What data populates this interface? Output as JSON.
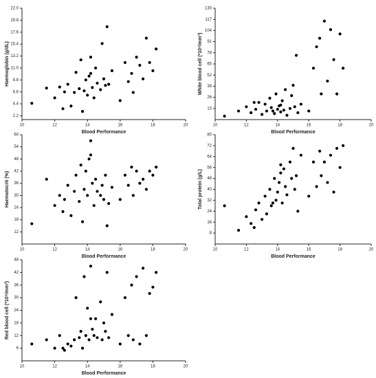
{
  "chart_data": [
    {
      "type": "scatter",
      "x_label": "Blood Performance",
      "y_label": "Haemoglobin (g/dL)",
      "xlim": [
        10,
        20
      ],
      "xticks": [
        10,
        12,
        14,
        16,
        18,
        20
      ],
      "ylim": [
        1.5,
        22
      ],
      "yticks": [
        2.2,
        4.4,
        6.6,
        8.8,
        {
          "value": 11,
          "label": "11.0"
        },
        13.2,
        15.4,
        17.6,
        19.8,
        {
          "value": 22,
          "label": "22.0"
        }
      ],
      "color": "#000000",
      "x": [
        10.6,
        11.5,
        12.0,
        12.3,
        12.6,
        12.8,
        13.0,
        13.2,
        13.3,
        13.5,
        13.6,
        13.8,
        13.9,
        14.0,
        14.1,
        14.2,
        14.3,
        14.4,
        14.5,
        14.6,
        14.8,
        14.9,
        15.0,
        15.1,
        15.2,
        15.5,
        16.0,
        16.3,
        16.5,
        16.7,
        16.8,
        17.0,
        17.2,
        17.4,
        17.6,
        17.8,
        18.0,
        18.2,
        12.5,
        13.7,
        14.2,
        15.3
      ],
      "y": [
        4.5,
        7.3,
        5.5,
        7.5,
        6.6,
        8.0,
        4.0,
        6.5,
        10.2,
        7.2,
        12.5,
        6.8,
        8.8,
        6.0,
        9.5,
        13.0,
        7.4,
        5.5,
        11.0,
        8.2,
        7.0,
        15.5,
        9.0,
        7.8,
        18.6,
        10.5,
        5.0,
        12.0,
        8.5,
        10.0,
        6.5,
        13.0,
        11.5,
        9.0,
        16.5,
        12.0,
        10.5,
        14.5,
        3.5,
        3.0,
        10.0,
        8.0
      ]
    },
    {
      "type": "scatter",
      "x_label": "Blood Performance",
      "y_label": "White blood cell (*10⁹/mm³)",
      "xlim": [
        10,
        20
      ],
      "xticks": [
        10,
        12,
        14,
        16,
        18,
        20
      ],
      "ylim": [
        0,
        130
      ],
      "yticks": [
        13,
        26,
        39,
        52,
        65,
        78,
        91,
        104,
        117,
        130
      ],
      "color": "#000000",
      "x": [
        10.6,
        11.5,
        12.0,
        12.3,
        12.6,
        12.8,
        13.0,
        13.2,
        13.3,
        13.5,
        13.6,
        13.8,
        13.9,
        14.0,
        14.1,
        14.2,
        14.3,
        14.4,
        14.5,
        14.6,
        14.8,
        14.9,
        15.0,
        15.1,
        15.2,
        15.5,
        16.0,
        16.3,
        16.5,
        16.7,
        16.8,
        17.0,
        17.2,
        17.4,
        17.6,
        17.8,
        18.0,
        18.2,
        12.5,
        13.7,
        14.2,
        15.3
      ],
      "y": [
        4,
        10,
        15,
        8,
        12,
        20,
        6,
        18,
        10,
        25,
        14,
        7,
        30,
        12,
        16,
        9,
        22,
        11,
        35,
        5,
        13,
        28,
        40,
        15,
        75,
        18,
        10,
        60,
        85,
        95,
        30,
        115,
        45,
        105,
        70,
        30,
        100,
        60,
        20,
        10,
        17,
        8
      ]
    },
    {
      "type": "scatter",
      "x_label": "Blood Performance",
      "y_label": "Haematocrit (%)",
      "xlim": [
        10,
        20
      ],
      "xticks": [
        10,
        12,
        14,
        16,
        18,
        20
      ],
      "ylim": [
        6,
        60
      ],
      "yticks": [
        12,
        18,
        24,
        30,
        36,
        42,
        48,
        54,
        60
      ],
      "color": "#000000",
      "x": [
        10.6,
        11.5,
        12.0,
        12.3,
        12.6,
        12.8,
        13.0,
        13.2,
        13.3,
        13.5,
        13.6,
        13.8,
        13.9,
        14.0,
        14.1,
        14.2,
        14.3,
        14.4,
        14.5,
        14.6,
        14.8,
        14.9,
        15.0,
        15.1,
        15.2,
        15.5,
        16.0,
        16.3,
        16.5,
        16.7,
        16.8,
        17.0,
        17.2,
        17.4,
        17.6,
        17.8,
        18.0,
        18.2,
        12.5,
        13.7,
        14.2,
        15.3
      ],
      "y": [
        16,
        38,
        25,
        30,
        28,
        35,
        20,
        32,
        40,
        27,
        45,
        33,
        42,
        30,
        48,
        57,
        36,
        25,
        38,
        32,
        30,
        35,
        28,
        40,
        15,
        34,
        28,
        40,
        35,
        44,
        30,
        42,
        36,
        38,
        33,
        42,
        40,
        44,
        22,
        17,
        50,
        26
      ]
    },
    {
      "type": "scatter",
      "x_label": "Blood Performance",
      "y_label": "Total protein (g/L)",
      "xlim": [
        10,
        20
      ],
      "xticks": [
        10,
        12,
        14,
        16,
        18,
        20
      ],
      "ylim": [
        0,
        80
      ],
      "yticks": [
        8,
        16,
        24,
        32,
        40,
        48,
        56,
        64,
        72,
        80
      ],
      "color": "#000000",
      "x": [
        10.6,
        11.5,
        12.0,
        12.3,
        12.6,
        12.8,
        13.0,
        13.2,
        13.3,
        13.5,
        13.6,
        13.8,
        13.9,
        14.0,
        14.1,
        14.2,
        14.3,
        14.4,
        14.5,
        14.6,
        14.8,
        14.9,
        15.0,
        15.1,
        15.2,
        15.5,
        16.0,
        16.3,
        16.5,
        16.7,
        16.8,
        17.0,
        17.2,
        17.4,
        17.6,
        17.8,
        18.0,
        18.2,
        12.5,
        13.7,
        14.2,
        15.3
      ],
      "y": [
        28,
        10,
        20,
        15,
        25,
        30,
        18,
        35,
        22,
        40,
        28,
        48,
        32,
        38,
        45,
        52,
        30,
        55,
        42,
        36,
        60,
        48,
        70,
        40,
        50,
        65,
        35,
        60,
        42,
        68,
        50,
        60,
        45,
        65,
        38,
        70,
        56,
        72,
        12,
        30,
        58,
        24
      ]
    },
    {
      "type": "scatter",
      "x_label": "Blood Performance",
      "y_label": "Red blood cell (*10⁹/mm³)",
      "xlim": [
        10,
        20
      ],
      "xticks": [
        10,
        12,
        14,
        16,
        18,
        20
      ],
      "ylim": [
        0,
        48
      ],
      "yticks": [
        6,
        12,
        18,
        24,
        30,
        36,
        42,
        48
      ],
      "color": "#000000",
      "x": [
        10.6,
        11.5,
        12.0,
        12.3,
        12.6,
        12.8,
        13.0,
        13.2,
        13.3,
        13.5,
        13.6,
        13.8,
        13.9,
        14.0,
        14.1,
        14.2,
        14.3,
        14.4,
        14.5,
        14.6,
        14.8,
        14.9,
        15.0,
        15.1,
        15.2,
        15.5,
        16.0,
        16.3,
        16.5,
        16.7,
        16.8,
        17.0,
        17.2,
        17.4,
        17.6,
        17.8,
        18.0,
        18.2,
        12.5,
        13.7,
        14.2,
        15.3
      ],
      "y": [
        8,
        10,
        6,
        12,
        5,
        8,
        7,
        10,
        30,
        11,
        14,
        40,
        12,
        25,
        10,
        45,
        15,
        12,
        20,
        11,
        28,
        10,
        18,
        14,
        42,
        22,
        8,
        30,
        12,
        36,
        10,
        40,
        8,
        44,
        12,
        32,
        35,
        42,
        6,
        6,
        20,
        11
      ]
    }
  ]
}
